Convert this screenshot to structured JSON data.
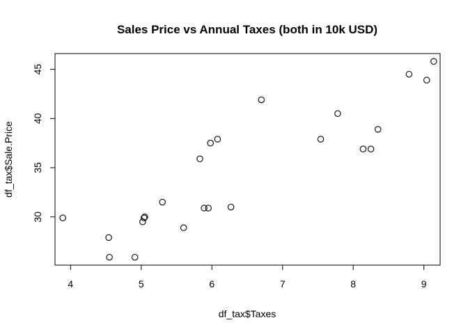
{
  "chart_data": {
    "type": "scatter",
    "title": "Sales Price vs Annual Taxes (both in 10k USD)",
    "xlabel": "df_tax$Taxes",
    "ylabel": "df_tax$Sale.Price",
    "xlim": [
      3.78,
      9.23
    ],
    "ylim": [
      25.1,
      46.6
    ],
    "x_ticks": [
      4,
      5,
      6,
      7,
      8,
      9
    ],
    "y_ticks": [
      30,
      35,
      40,
      45
    ],
    "grid": false,
    "marker": "open-circle",
    "points": [
      {
        "x": 3.89,
        "y": 29.9
      },
      {
        "x": 4.54,
        "y": 27.9
      },
      {
        "x": 4.55,
        "y": 25.9
      },
      {
        "x": 4.91,
        "y": 25.9
      },
      {
        "x": 5.02,
        "y": 29.5
      },
      {
        "x": 5.04,
        "y": 29.9
      },
      {
        "x": 5.05,
        "y": 30.0
      },
      {
        "x": 5.3,
        "y": 31.5
      },
      {
        "x": 5.6,
        "y": 28.9
      },
      {
        "x": 5.83,
        "y": 35.9
      },
      {
        "x": 5.89,
        "y": 30.9
      },
      {
        "x": 5.95,
        "y": 30.9
      },
      {
        "x": 5.98,
        "y": 37.5
      },
      {
        "x": 6.08,
        "y": 37.9
      },
      {
        "x": 6.27,
        "y": 31.0
      },
      {
        "x": 6.7,
        "y": 41.9
      },
      {
        "x": 7.54,
        "y": 37.9
      },
      {
        "x": 7.78,
        "y": 40.5
      },
      {
        "x": 8.14,
        "y": 36.9
      },
      {
        "x": 8.25,
        "y": 36.9
      },
      {
        "x": 8.35,
        "y": 38.9
      },
      {
        "x": 8.79,
        "y": 44.5
      },
      {
        "x": 9.04,
        "y": 43.9
      },
      {
        "x": 9.14,
        "y": 45.8
      }
    ]
  }
}
